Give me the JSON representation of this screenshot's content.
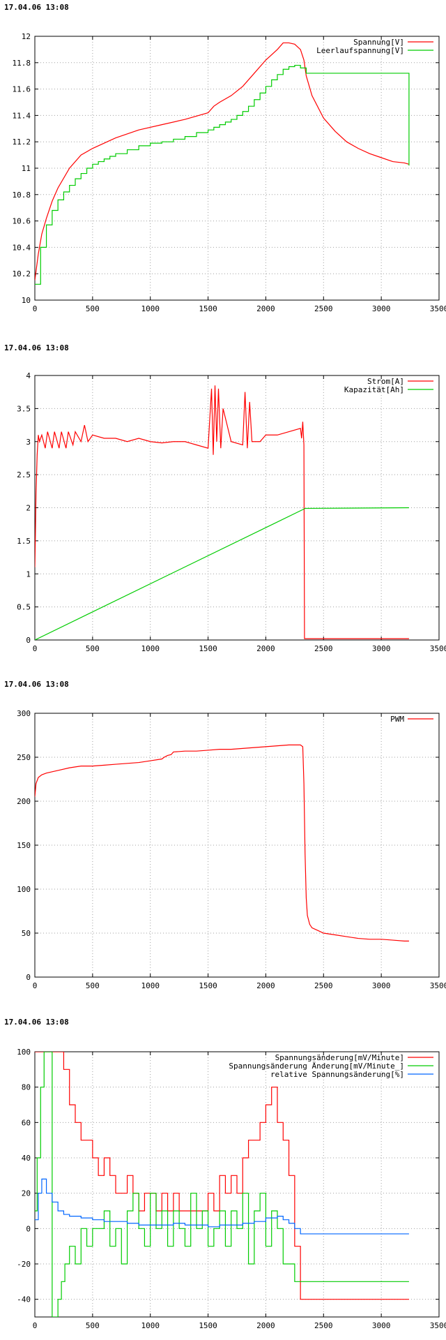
{
  "charts": [
    {
      "timestamp": "17.04.06 13:08",
      "chart_data": {
        "type": "line",
        "xlim": [
          0,
          3500
        ],
        "ylim": [
          10,
          12
        ],
        "xticks": [
          0,
          500,
          1000,
          1500,
          2000,
          2500,
          3000,
          3500
        ],
        "xtick_labels": [
          "0",
          "500",
          "1000",
          "1500",
          "2000",
          "2500",
          "3000",
          "3500"
        ],
        "yticks": [
          10,
          10.2,
          10.4,
          10.6,
          10.8,
          11,
          11.2,
          11.4,
          11.6,
          11.8,
          12
        ],
        "ytick_labels": [
          "10",
          "10.2",
          "10.4",
          "10.6",
          "10.8",
          "11",
          "11.2",
          "11.4",
          "11.6",
          "11.8",
          "12"
        ],
        "grid": true,
        "legend_position": "top-right",
        "series": [
          {
            "name": "Spannung[V]",
            "color": "#ff0000",
            "step": false,
            "x": [
              0,
              30,
              60,
              100,
              150,
              200,
              300,
              400,
              500,
              700,
              900,
              1100,
              1300,
              1500,
              1550,
              1600,
              1700,
              1800,
              1900,
              2000,
              2100,
              2150,
              2200,
              2250,
              2300,
              2330,
              2350,
              2400,
              2500,
              2600,
              2700,
              2800,
              2900,
              3000,
              3100,
              3200,
              3240
            ],
            "y": [
              10.15,
              10.35,
              10.5,
              10.62,
              10.75,
              10.85,
              11.0,
              11.1,
              11.15,
              11.23,
              11.29,
              11.33,
              11.37,
              11.42,
              11.47,
              11.5,
              11.55,
              11.62,
              11.72,
              11.82,
              11.9,
              11.95,
              11.95,
              11.94,
              11.9,
              11.82,
              11.7,
              11.55,
              11.38,
              11.28,
              11.2,
              11.15,
              11.11,
              11.08,
              11.05,
              11.04,
              11.03
            ]
          },
          {
            "name": "Leerlaufspannung[V]",
            "color": "#00cc00",
            "step": true,
            "x": [
              0,
              50,
              100,
              150,
              200,
              250,
              300,
              350,
              400,
              450,
              500,
              550,
              600,
              650,
              700,
              800,
              900,
              1000,
              1100,
              1200,
              1300,
              1400,
              1500,
              1550,
              1600,
              1650,
              1700,
              1750,
              1800,
              1850,
              1900,
              1950,
              2000,
              2050,
              2100,
              2150,
              2200,
              2250,
              2300,
              2350,
              3230,
              3240
            ],
            "y": [
              10.12,
              10.4,
              10.57,
              10.68,
              10.76,
              10.82,
              10.87,
              10.92,
              10.96,
              11.0,
              11.03,
              11.05,
              11.07,
              11.09,
              11.11,
              11.14,
              11.17,
              11.19,
              11.2,
              11.22,
              11.24,
              11.27,
              11.29,
              11.31,
              11.33,
              11.35,
              11.37,
              11.4,
              11.43,
              11.47,
              11.52,
              11.57,
              11.62,
              11.67,
              11.71,
              11.75,
              11.77,
              11.78,
              11.76,
              11.72,
              11.72,
              11.02
            ]
          }
        ]
      }
    },
    {
      "timestamp": "17.04.06 13:08",
      "chart_data": {
        "type": "line",
        "xlim": [
          0,
          3500
        ],
        "ylim": [
          0,
          4
        ],
        "xticks": [
          0,
          500,
          1000,
          1500,
          2000,
          2500,
          3000,
          3500
        ],
        "xtick_labels": [
          "0",
          "500",
          "1000",
          "1500",
          "2000",
          "2500",
          "3000",
          "3500"
        ],
        "yticks": [
          0,
          0.5,
          1,
          1.5,
          2,
          2.5,
          3,
          3.5,
          4
        ],
        "ytick_labels": [
          "0",
          "0.5",
          "1",
          "1.5",
          "2",
          "2.5",
          "3",
          "3.5",
          "4"
        ],
        "grid": true,
        "legend_position": "top-right",
        "series": [
          {
            "name": "Strom[A]",
            "color": "#ff0000",
            "step": false,
            "x": [
              0,
              5,
              10,
              20,
              30,
              40,
              60,
              90,
              110,
              150,
              170,
              210,
              230,
              270,
              290,
              330,
              350,
              400,
              430,
              460,
              500,
              600,
              700,
              800,
              900,
              1000,
              1100,
              1200,
              1300,
              1400,
              1500,
              1530,
              1545,
              1560,
              1575,
              1590,
              1610,
              1630,
              1700,
              1800,
              1820,
              1840,
              1860,
              1880,
              1950,
              2000,
              2100,
              2200,
              2300,
              2310,
              2320,
              2330,
              2335,
              3240
            ],
            "y": [
              1.1,
              1.6,
              2.2,
              2.8,
              3.1,
              3.0,
              3.1,
              2.9,
              3.15,
              2.9,
              3.15,
              2.9,
              3.15,
              2.9,
              3.15,
              2.95,
              3.15,
              3.0,
              3.25,
              3.0,
              3.1,
              3.05,
              3.05,
              3.0,
              3.05,
              3.0,
              2.98,
              3.0,
              3.0,
              2.95,
              2.9,
              3.8,
              2.8,
              3.85,
              3.0,
              3.8,
              2.9,
              3.5,
              3.0,
              2.95,
              3.75,
              2.9,
              3.6,
              3.0,
              3.0,
              3.1,
              3.1,
              3.15,
              3.2,
              3.05,
              3.3,
              2.95,
              0.02,
              0.02
            ]
          },
          {
            "name": "Kapazität[Ah]",
            "color": "#00cc00",
            "step": false,
            "x": [
              0,
              2330,
              2340,
              3240
            ],
            "y": [
              0,
              1.98,
              1.99,
              2.0
            ]
          }
        ]
      }
    },
    {
      "timestamp": "17.04.06 13:08",
      "chart_data": {
        "type": "line",
        "xlim": [
          0,
          3500
        ],
        "ylim": [
          0,
          300
        ],
        "xticks": [
          0,
          500,
          1000,
          1500,
          2000,
          2500,
          3000,
          3500
        ],
        "xtick_labels": [
          "0",
          "500",
          "1000",
          "1500",
          "2000",
          "2500",
          "3000",
          "3500"
        ],
        "yticks": [
          0,
          50,
          100,
          150,
          200,
          250,
          300
        ],
        "ytick_labels": [
          "0",
          "50",
          "100",
          "150",
          "200",
          "250",
          "300"
        ],
        "grid": true,
        "legend_position": "top-right",
        "series": [
          {
            "name": "PWM",
            "color": "#ff0000",
            "step": false,
            "x": [
              0,
              10,
              30,
              60,
              100,
              200,
              300,
              400,
              500,
              600,
              700,
              800,
              900,
              1000,
              1100,
              1120,
              1150,
              1180,
              1200,
              1300,
              1400,
              1500,
              1600,
              1700,
              1800,
              1900,
              2000,
              2100,
              2200,
              2300,
              2320,
              2330,
              2340,
              2350,
              2360,
              2380,
              2400,
              2450,
              2500,
              2600,
              2700,
              2800,
              2900,
              3000,
              3100,
              3200,
              3240
            ],
            "y": [
              205,
              220,
              227,
              230,
              232,
              235,
              238,
              240,
              240,
              241,
              242,
              243,
              244,
              246,
              248,
              250,
              252,
              253,
              256,
              257,
              257,
              258,
              259,
              259,
              260,
              261,
              262,
              263,
              264,
              264,
              262,
              220,
              140,
              90,
              70,
              60,
              56,
              53,
              50,
              48,
              46,
              44,
              43,
              43,
              42,
              41,
              41
            ]
          }
        ]
      }
    },
    {
      "timestamp": "17.04.06 13:08",
      "chart_data": {
        "type": "line",
        "xlim": [
          0,
          3500
        ],
        "ylim": [
          -50,
          100
        ],
        "xticks": [
          0,
          500,
          1000,
          1500,
          2000,
          2500,
          3000,
          3500
        ],
        "xtick_labels": [
          "0",
          "500",
          "1000",
          "1500",
          "2000",
          "2500",
          "3000",
          "3500"
        ],
        "yticks": [
          -40,
          -20,
          0,
          20,
          40,
          60,
          80,
          100
        ],
        "ytick_labels": [
          "-40",
          "-20",
          "0",
          "20",
          "40",
          "60",
          "80",
          "100"
        ],
        "grid": true,
        "legend_position": "top-right",
        "series": [
          {
            "name": "Spannungsänderung[mV/Minute]",
            "color": "#ff0000",
            "step": true,
            "x": [
              0,
              200,
              250,
              300,
              350,
              400,
              500,
              550,
              600,
              650,
              700,
              750,
              800,
              850,
              900,
              950,
              1000,
              1050,
              1100,
              1150,
              1200,
              1250,
              1300,
              1350,
              1400,
              1450,
              1500,
              1550,
              1600,
              1650,
              1700,
              1750,
              1800,
              1850,
              1900,
              1950,
              2000,
              2050,
              2100,
              2150,
              2200,
              2250,
              2300,
              3240
            ],
            "y": [
              100,
              100,
              90,
              70,
              60,
              50,
              40,
              30,
              40,
              30,
              20,
              20,
              30,
              20,
              10,
              20,
              20,
              10,
              20,
              10,
              20,
              10,
              10,
              10,
              10,
              10,
              20,
              10,
              30,
              20,
              30,
              20,
              40,
              50,
              50,
              60,
              70,
              80,
              60,
              50,
              30,
              -10,
              -40,
              -40
            ]
          },
          {
            "name": "Spannungsänderung Änderung[mV/Minute_]",
            "color": "#00cc00",
            "step": true,
            "x": [
              0,
              20,
              50,
              80,
              150,
              200,
              230,
              260,
              300,
              350,
              400,
              450,
              500,
              550,
              600,
              650,
              700,
              750,
              800,
              850,
              900,
              950,
              1000,
              1050,
              1100,
              1150,
              1200,
              1250,
              1300,
              1350,
              1400,
              1450,
              1500,
              1550,
              1600,
              1650,
              1700,
              1750,
              1800,
              1850,
              1900,
              1950,
              2000,
              2050,
              2100,
              2150,
              2200,
              2250,
              2300,
              3240
            ],
            "y": [
              10,
              40,
              80,
              100,
              -50,
              -40,
              -30,
              -20,
              -10,
              -20,
              0,
              -10,
              0,
              0,
              10,
              -10,
              0,
              -20,
              10,
              20,
              0,
              -10,
              20,
              0,
              10,
              -10,
              10,
              0,
              -10,
              20,
              0,
              10,
              -10,
              0,
              10,
              -10,
              10,
              0,
              20,
              -20,
              10,
              20,
              -10,
              10,
              0,
              -20,
              -20,
              -30,
              -30,
              -30
            ]
          },
          {
            "name": "relative Spannungsänderung[%]",
            "color": "#0066ff",
            "step": true,
            "x": [
              0,
              30,
              60,
              100,
              150,
              200,
              250,
              300,
              400,
              500,
              600,
              700,
              800,
              900,
              1000,
              1100,
              1200,
              1300,
              1400,
              1500,
              1600,
              1700,
              1800,
              1900,
              2000,
              2100,
              2150,
              2200,
              2250,
              2300,
              3240
            ],
            "y": [
              5,
              20,
              28,
              20,
              15,
              10,
              8,
              7,
              6,
              5,
              4,
              4,
              3,
              2,
              2,
              2,
              3,
              2,
              2,
              1,
              2,
              2,
              3,
              4,
              6,
              7,
              5,
              3,
              0,
              -3,
              -3
            ]
          }
        ]
      }
    }
  ]
}
